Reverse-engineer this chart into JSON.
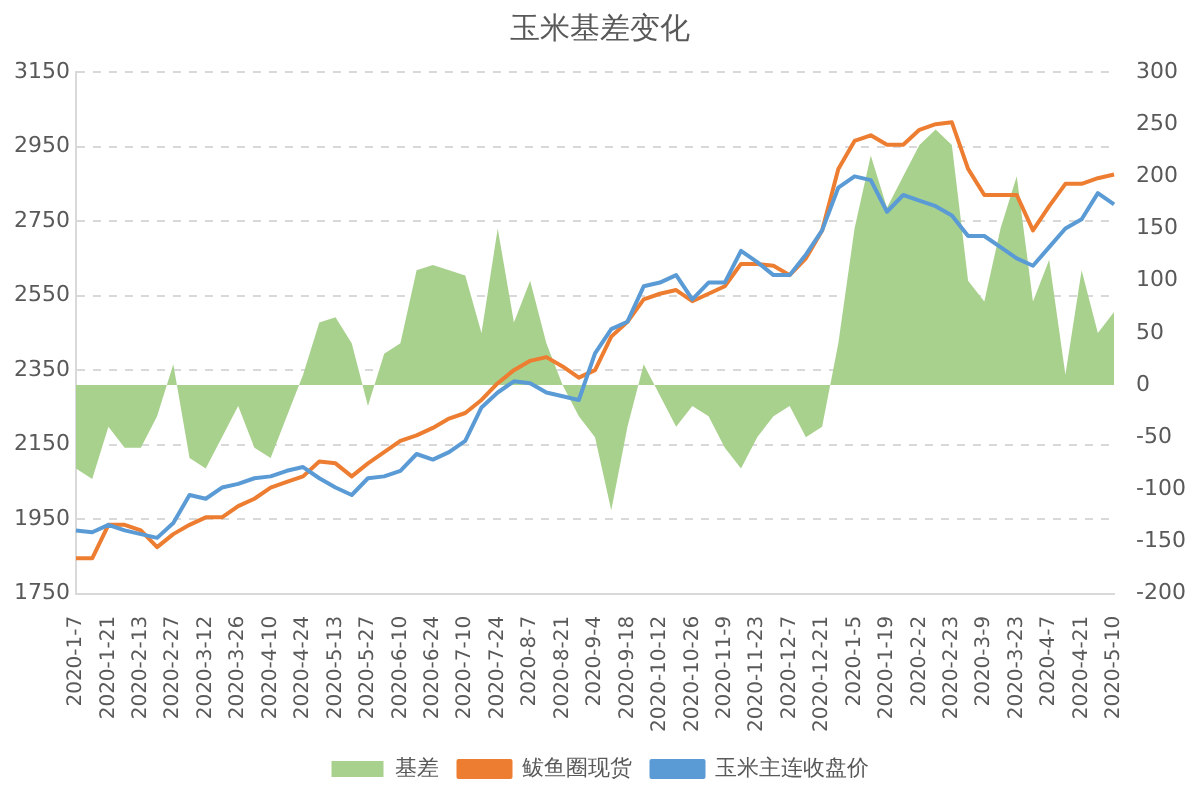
{
  "chart_data": {
    "type": "line",
    "title": "玉米基差变化",
    "categories": [
      "2020-1-7",
      null,
      "2020-1-21",
      null,
      "2020-2-13",
      null,
      "2020-2-27",
      null,
      "2020-3-12",
      null,
      "2020-3-26",
      null,
      "2020-4-10",
      null,
      "2020-4-24",
      null,
      "2020-5-13",
      null,
      "2020-5-27",
      null,
      "2020-6-10",
      null,
      "2020-6-24",
      null,
      "2020-7-10",
      null,
      "2020-7-24",
      null,
      "2020-8-7",
      null,
      "2020-8-21",
      null,
      "2020-9-4",
      null,
      "2020-9-18",
      null,
      "2020-10-12",
      null,
      "2020-10-26",
      null,
      "2020-11-9",
      null,
      "2020-11-23",
      null,
      "2020-12-7",
      null,
      "2020-12-21",
      null,
      "2020-1-5",
      null,
      "2020-1-19",
      null,
      "2020-2-2",
      null,
      "2020-2-23",
      null,
      "2020-3-9",
      null,
      "2020-3-23",
      null,
      "2020-4-7",
      null,
      "2020-4-21",
      null,
      "2020-5-10"
    ],
    "series": [
      {
        "name": "基差",
        "type": "area",
        "axis": "y2",
        "color": "#a9d18e",
        "values": [
          -80,
          -90,
          -40,
          -60,
          -60,
          -30,
          20,
          -70,
          -80,
          -50,
          -20,
          -60,
          -70,
          -30,
          10,
          60,
          65,
          40,
          -20,
          30,
          40,
          110,
          115,
          110,
          105,
          50,
          150,
          60,
          100,
          40,
          0,
          -30,
          -50,
          -120,
          -40,
          20,
          -10,
          -40,
          -20,
          -30,
          -60,
          -80,
          -50,
          -30,
          -20,
          -50,
          -40,
          40,
          150,
          220,
          170,
          200,
          230,
          245,
          230,
          100,
          80,
          150,
          200,
          80,
          120,
          10,
          110,
          50,
          70
        ]
      },
      {
        "name": "鲅鱼圈现货",
        "type": "line",
        "color": "#ed7d31",
        "values": [
          1845,
          1845,
          1935,
          1935,
          1920,
          1875,
          1910,
          1935,
          1955,
          1955,
          1985,
          2005,
          2035,
          2050,
          2065,
          2105,
          2100,
          2065,
          2100,
          2130,
          2160,
          2175,
          2195,
          2220,
          2235,
          2270,
          2315,
          2350,
          2375,
          2385,
          2360,
          2330,
          2350,
          2440,
          2480,
          2540,
          2555,
          2565,
          2535,
          2555,
          2575,
          2635,
          2635,
          2630,
          2605,
          2650,
          2725,
          2890,
          2965,
          2980,
          2955,
          2955,
          2995,
          3010,
          3015,
          2890,
          2820,
          2820,
          2820,
          2725,
          2790,
          2850,
          2850,
          2865,
          2875
        ]
      },
      {
        "name": "玉米主连收盘价",
        "type": "line",
        "color": "#5b9bd5",
        "values": [
          1920,
          1915,
          1935,
          1920,
          1910,
          1900,
          1940,
          2015,
          2005,
          2035,
          2045,
          2060,
          2065,
          2080,
          2090,
          2060,
          2035,
          2015,
          2060,
          2065,
          2080,
          2125,
          2110,
          2130,
          2160,
          2250,
          2290,
          2320,
          2315,
          2290,
          2280,
          2270,
          2395,
          2460,
          2480,
          2575,
          2585,
          2605,
          2540,
          2585,
          2585,
          2670,
          2640,
          2605,
          2605,
          2660,
          2725,
          2840,
          2870,
          2860,
          2775,
          2820,
          2805,
          2790,
          2765,
          2710,
          2710,
          2680,
          2650,
          2630,
          2680,
          2730,
          2755,
          2825,
          2795
        ]
      }
    ],
    "ylim": [
      1750,
      3150
    ],
    "yticks": [
      1750,
      1950,
      2150,
      2350,
      2550,
      2750,
      2950,
      3150
    ],
    "y2lim": [
      -200,
      300
    ],
    "y2ticks": [
      -200,
      -150,
      -100,
      -50,
      0,
      50,
      100,
      150,
      200,
      250,
      300
    ],
    "grid": "y",
    "legend": "bottom",
    "marker": "none",
    "line_style": "solid"
  }
}
